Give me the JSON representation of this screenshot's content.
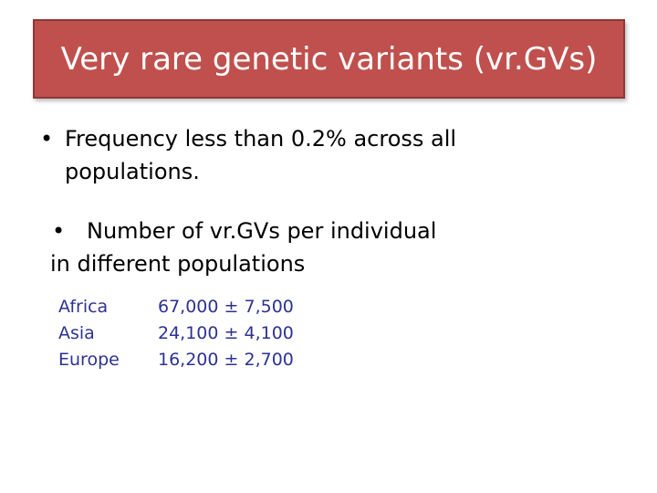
{
  "slide": {
    "title": "Very rare genetic variants (vr.GVs)",
    "bullets": [
      {
        "marker": "•",
        "text": "Frequency less than 0.2% across all populations."
      },
      {
        "marker": "•",
        "line1": "Number of vr.GVs  per individual",
        "line2": "in different populations"
      }
    ],
    "table": {
      "rows": [
        {
          "region": "Africa",
          "value": "67,000 ± 7,500"
        },
        {
          "region": "Asia",
          "value": "24,100 ± 4,100"
        },
        {
          "region": "Europe",
          "value": "16,200 ± 2,700"
        }
      ]
    },
    "colors": {
      "title_background": "#c0504d",
      "title_text": "#ffffff",
      "table_text": "#2e3292"
    }
  }
}
